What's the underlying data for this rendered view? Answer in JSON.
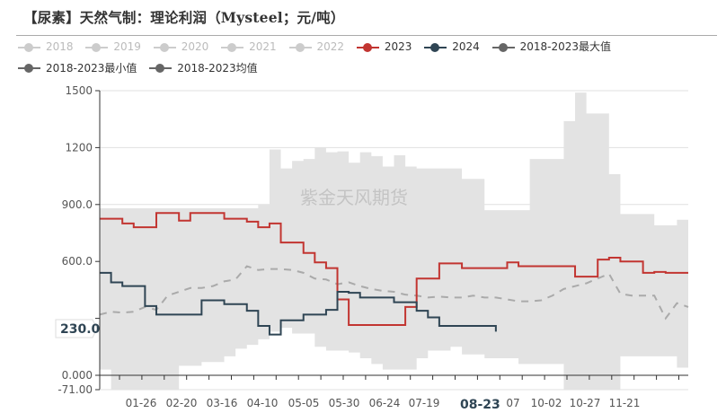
{
  "title": "【尿素】天然气制：理论利润（Mysteel；元/吨）",
  "legend": {
    "items": [
      {
        "label": "2018",
        "color": "#cccccc",
        "text_color": "#bbbbbb"
      },
      {
        "label": "2019",
        "color": "#cccccc",
        "text_color": "#bbbbbb"
      },
      {
        "label": "2020",
        "color": "#cccccc",
        "text_color": "#bbbbbb"
      },
      {
        "label": "2021",
        "color": "#cccccc",
        "text_color": "#bbbbbb"
      },
      {
        "label": "2022",
        "color": "#cccccc",
        "text_color": "#bbbbbb"
      },
      {
        "label": "2023",
        "color": "#c23531",
        "text_color": "#333333"
      },
      {
        "label": "2024",
        "color": "#2f4554",
        "text_color": "#333333"
      },
      {
        "label": "2018-2023最大值",
        "color": "#666666",
        "text_color": "#333333"
      },
      {
        "label": "2018-2023最小值",
        "color": "#666666",
        "text_color": "#333333"
      },
      {
        "label": "2018-2023均值",
        "color": "#666666",
        "text_color": "#333333"
      }
    ]
  },
  "watermark": "紫金天风期货",
  "tooltip": {
    "y_value": "230.0",
    "x_value": "08-23"
  },
  "colors": {
    "series_2023": "#c23531",
    "series_2024": "#2f4554",
    "band": "#e3e3e3",
    "mean": "#aaaaaa",
    "axis": "#333333",
    "grid": "#e0e0e0"
  },
  "chart_data": {
    "type": "line",
    "title": "【尿素】天然气制：理论利润（Mysteel；元/吨）",
    "xlabel": "",
    "ylabel": "元/吨",
    "ylim": [
      -71,
      1500
    ],
    "y_ticks": [
      "1500",
      "1200",
      "900.0",
      "600.0",
      "300.0",
      "0.000",
      "-71.00"
    ],
    "y_tick_values": [
      1500,
      1200,
      900,
      600,
      300,
      0,
      -71
    ],
    "x_ticks": [
      "01-26",
      "02-20",
      "03-16",
      "04-10",
      "05-05",
      "05-30",
      "06-24",
      "07-19",
      "08-23",
      "09-07",
      "10-02",
      "10-27",
      "11-21"
    ],
    "legend_position": "top",
    "grid": true,
    "x_index": [
      0,
      1,
      2,
      3,
      4,
      5,
      6,
      7,
      8,
      9,
      10,
      11,
      12,
      13,
      14,
      15,
      16,
      17,
      18,
      19,
      20,
      21,
      22,
      23,
      24,
      25,
      26,
      27,
      28,
      29,
      30,
      31,
      32,
      33,
      34,
      35,
      36,
      37,
      38,
      39,
      40,
      41,
      42,
      43,
      44,
      45,
      46,
      47,
      48,
      49,
      50,
      51,
      52
    ],
    "series": [
      {
        "name": "2023",
        "values": [
          825,
          825,
          800,
          780,
          780,
          855,
          855,
          815,
          855,
          855,
          855,
          825,
          825,
          810,
          780,
          800,
          700,
          700,
          645,
          595,
          565,
          400,
          265,
          265,
          265,
          265,
          265,
          360,
          510,
          510,
          590,
          590,
          565,
          565,
          565,
          565,
          595,
          575,
          575,
          575,
          575,
          575,
          520,
          520,
          610,
          620,
          600,
          600,
          540,
          545,
          540,
          540,
          540
        ]
      },
      {
        "name": "2024",
        "values": [
          540,
          490,
          470,
          470,
          365,
          320,
          320,
          320,
          320,
          395,
          395,
          375,
          375,
          340,
          260,
          215,
          290,
          290,
          320,
          320,
          345,
          440,
          435,
          410,
          410,
          410,
          385,
          385,
          340,
          305,
          260,
          260,
          260,
          260,
          260,
          230
        ]
      },
      {
        "name": "2018-2023最大值",
        "values": [
          880,
          880,
          880,
          880,
          880,
          880,
          880,
          880,
          880,
          880,
          880,
          880,
          880,
          880,
          900,
          1190,
          1090,
          1130,
          1140,
          1200,
          1175,
          1180,
          1120,
          1175,
          1155,
          1100,
          1160,
          1100,
          1090,
          1090,
          1090,
          1090,
          1035,
          1035,
          870,
          870,
          870,
          870,
          1140,
          1140,
          1140,
          1340,
          1490,
          1380,
          1380,
          1060,
          850,
          850,
          850,
          790,
          790,
          820,
          820
        ]
      },
      {
        "name": "2018-2023最小值",
        "values": [
          30,
          -71,
          -71,
          -71,
          -71,
          -71,
          -71,
          50,
          50,
          70,
          70,
          100,
          140,
          160,
          190,
          230,
          250,
          220,
          220,
          150,
          130,
          130,
          120,
          90,
          60,
          30,
          30,
          30,
          90,
          130,
          130,
          150,
          110,
          110,
          90,
          90,
          90,
          60,
          60,
          60,
          60,
          -71,
          -71,
          -71,
          -71,
          -71,
          100,
          100,
          100,
          100,
          100,
          40,
          40
        ]
      },
      {
        "name": "2018-2023均值",
        "values": [
          320,
          335,
          330,
          335,
          360,
          345,
          420,
          440,
          460,
          460,
          470,
          495,
          505,
          575,
          555,
          560,
          560,
          555,
          540,
          510,
          505,
          480,
          490,
          470,
          455,
          445,
          440,
          425,
          420,
          410,
          415,
          410,
          410,
          420,
          410,
          410,
          400,
          390,
          390,
          395,
          420,
          455,
          470,
          485,
          510,
          535,
          430,
          420,
          420,
          420,
          300,
          380,
          360
        ]
      }
    ]
  }
}
